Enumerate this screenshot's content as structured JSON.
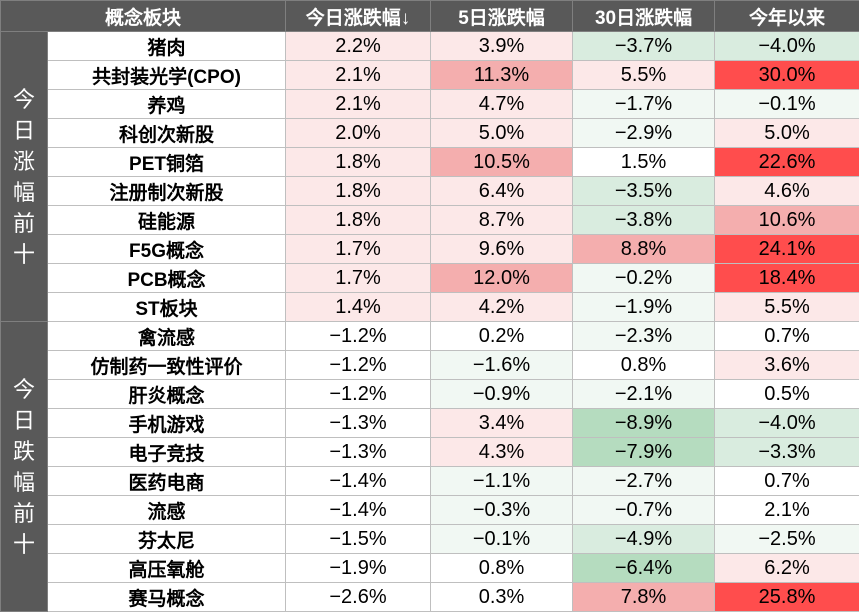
{
  "columns": {
    "name": "概念板块",
    "today": "今日涨跌幅↓",
    "d5": "5日涨跌幅",
    "d30": "30日涨跌幅",
    "ytd": "今年以来"
  },
  "colors": {
    "header_bg": "#595959",
    "header_text": "#ffffff",
    "gainer_name": "#c00000",
    "loser_name": "#375623",
    "positive_scale": [
      "#fce8e8",
      "#f4aeae",
      "#ee7070",
      "#ff4d4d"
    ],
    "negative_scale": [
      "#f1f8f3",
      "#d9ecdf",
      "#b5dcbf"
    ]
  },
  "groups": [
    {
      "label": "今日涨幅前十",
      "kind": "up",
      "rows": [
        {
          "name": "猪肉",
          "today": 2.2,
          "d5": 3.9,
          "d30": -3.7,
          "ytd": -4.0
        },
        {
          "name": "共封装光学(CPO)",
          "today": 2.1,
          "d5": 11.3,
          "d30": 5.5,
          "ytd": 30.0
        },
        {
          "name": "养鸡",
          "today": 2.1,
          "d5": 4.7,
          "d30": -1.7,
          "ytd": -0.1
        },
        {
          "name": "科创次新股",
          "today": 2.0,
          "d5": 5.0,
          "d30": -2.9,
          "ytd": 5.0
        },
        {
          "name": "PET铜箔",
          "today": 1.8,
          "d5": 10.5,
          "d30": 1.5,
          "ytd": 22.6
        },
        {
          "name": "注册制次新股",
          "today": 1.8,
          "d5": 6.4,
          "d30": -3.5,
          "ytd": 4.6
        },
        {
          "name": "硅能源",
          "today": 1.8,
          "d5": 8.7,
          "d30": -3.8,
          "ytd": 10.6
        },
        {
          "name": "F5G概念",
          "today": 1.7,
          "d5": 9.6,
          "d30": 8.8,
          "ytd": 24.1
        },
        {
          "name": "PCB概念",
          "today": 1.7,
          "d5": 12.0,
          "d30": -0.2,
          "ytd": 18.4
        },
        {
          "name": "ST板块",
          "today": 1.4,
          "d5": 4.2,
          "d30": -1.9,
          "ytd": 5.5
        }
      ]
    },
    {
      "label": "今日跌幅前十",
      "kind": "down",
      "rows": [
        {
          "name": "禽流感",
          "today": -1.2,
          "d5": 0.2,
          "d30": -2.3,
          "ytd": 0.7
        },
        {
          "name": "仿制药一致性评价",
          "today": -1.2,
          "d5": -1.6,
          "d30": 0.8,
          "ytd": 3.6
        },
        {
          "name": "肝炎概念",
          "today": -1.2,
          "d5": -0.9,
          "d30": -2.1,
          "ytd": 0.5
        },
        {
          "name": "手机游戏",
          "today": -1.3,
          "d5": 3.4,
          "d30": -8.9,
          "ytd": -4.0
        },
        {
          "name": "电子竞技",
          "today": -1.3,
          "d5": 4.3,
          "d30": -7.9,
          "ytd": -3.3
        },
        {
          "name": "医药电商",
          "today": -1.4,
          "d5": -1.1,
          "d30": -2.7,
          "ytd": 0.7
        },
        {
          "name": "流感",
          "today": -1.4,
          "d5": -0.3,
          "d30": -0.7,
          "ytd": 2.1
        },
        {
          "name": "芬太尼",
          "today": -1.5,
          "d5": -0.1,
          "d30": -4.9,
          "ytd": -2.5
        },
        {
          "name": "高压氧舱",
          "today": -1.9,
          "d5": 0.8,
          "d30": -6.4,
          "ytd": 6.2
        },
        {
          "name": "赛马概念",
          "today": -2.6,
          "d5": 0.3,
          "d30": 7.8,
          "ytd": 25.8
        }
      ]
    }
  ]
}
